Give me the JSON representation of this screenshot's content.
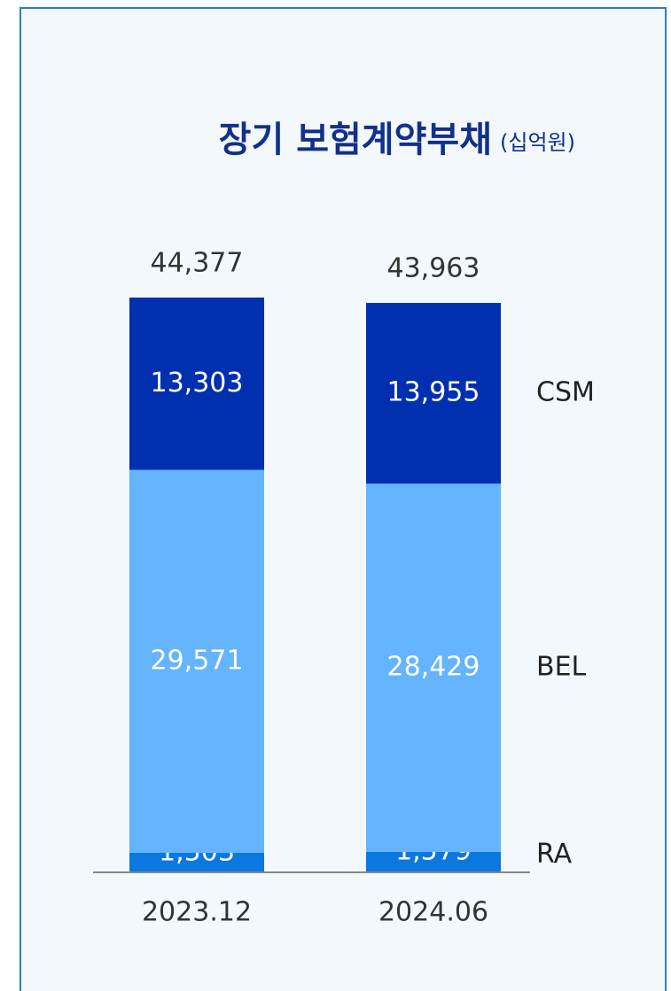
{
  "chart_data": {
    "type": "stacked_bar",
    "title": "장기 보험계약부채",
    "subtitle": "(십억원)",
    "categories": [
      "2023.12",
      "2024.06"
    ],
    "series": [
      {
        "name": "RA",
        "color": "#0a78e0",
        "values": [
          1503,
          1579
        ],
        "value_labels": [
          "1,503",
          "1,579"
        ]
      },
      {
        "name": "BEL",
        "color": "#64b4ff",
        "values": [
          29571,
          28429
        ],
        "value_labels": [
          "29,571",
          "28,429"
        ]
      },
      {
        "name": "CSM",
        "color": "#0030b0",
        "values": [
          13303,
          13955
        ],
        "value_labels": [
          "13,303",
          "13,955"
        ]
      }
    ],
    "totals": [
      44377,
      43963
    ],
    "total_labels": [
      "44,377",
      "43,963"
    ]
  }
}
